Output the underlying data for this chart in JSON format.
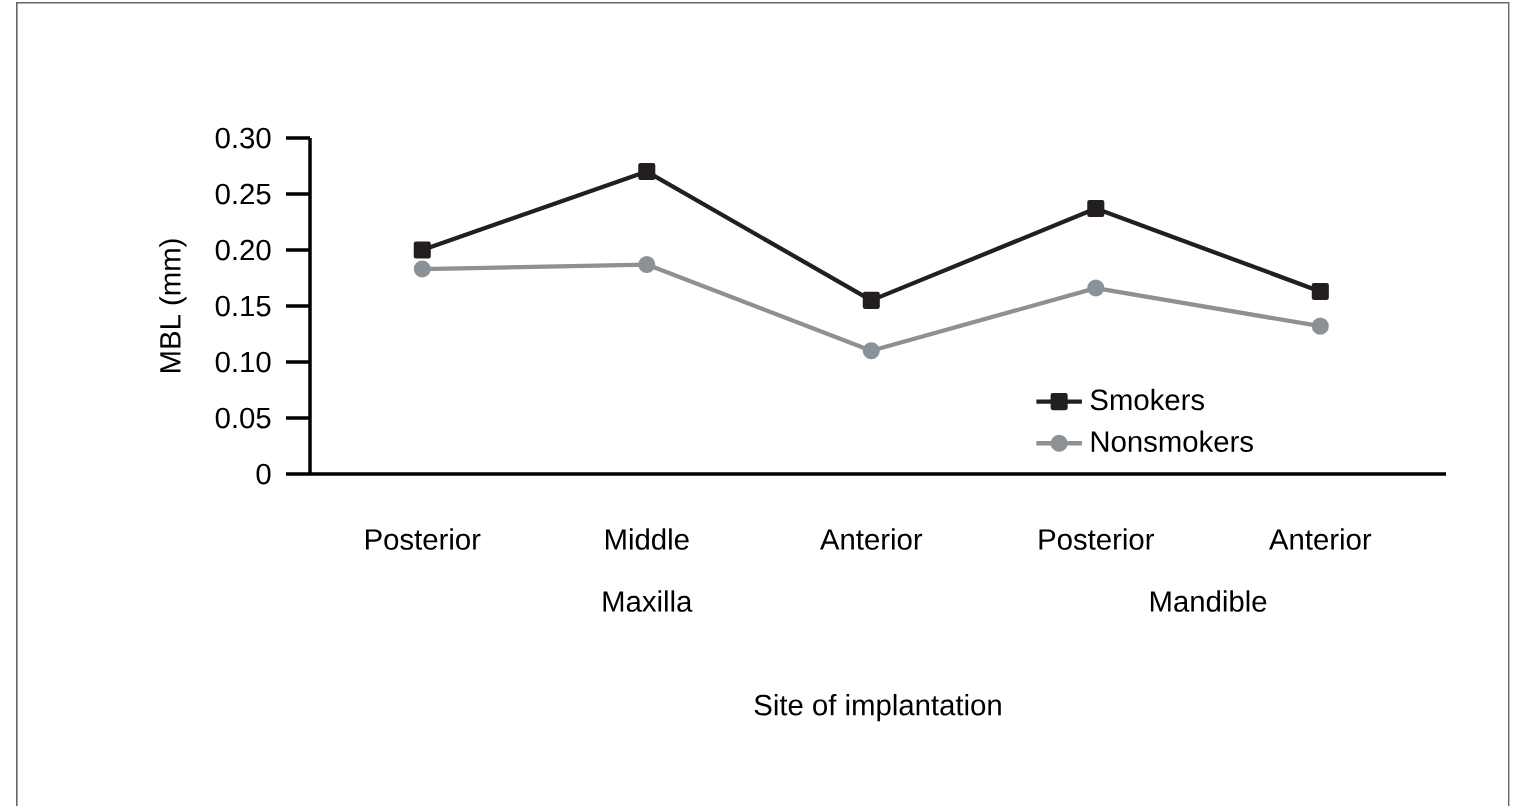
{
  "chart_data": {
    "type": "line",
    "xlabel": "Site of implantation",
    "ylabel": "MBL (mm)",
    "categories": [
      "Posterior",
      "Middle",
      "Anterior",
      "Posterior",
      "Anterior"
    ],
    "series": [
      {
        "name": "Smokers",
        "color": "#231f20",
        "marker": "square",
        "values": [
          0.2,
          0.27,
          0.155,
          0.237,
          0.163
        ]
      },
      {
        "name": "Nonsmokers",
        "color": "#8c9196",
        "marker": "circle",
        "values": [
          0.183,
          0.187,
          0.11,
          0.166,
          0.132
        ]
      }
    ],
    "annotations": [
      "Maxilla",
      "Mandible"
    ],
    "ylim": [
      0,
      0.3
    ],
    "yticks": [
      0,
      {
        "value": 0.05,
        "label": "0.05"
      },
      {
        "value": 0.1,
        "label": "0.10"
      },
      {
        "value": 0.15,
        "label": "0.15"
      },
      {
        "value": 0.2,
        "label": "0.20"
      },
      {
        "value": 0.25,
        "label": "0.25"
      },
      {
        "value": 0.3,
        "label": "0.30"
      }
    ],
    "grid": false,
    "legend": "bottom right",
    "line_style": "solid"
  }
}
